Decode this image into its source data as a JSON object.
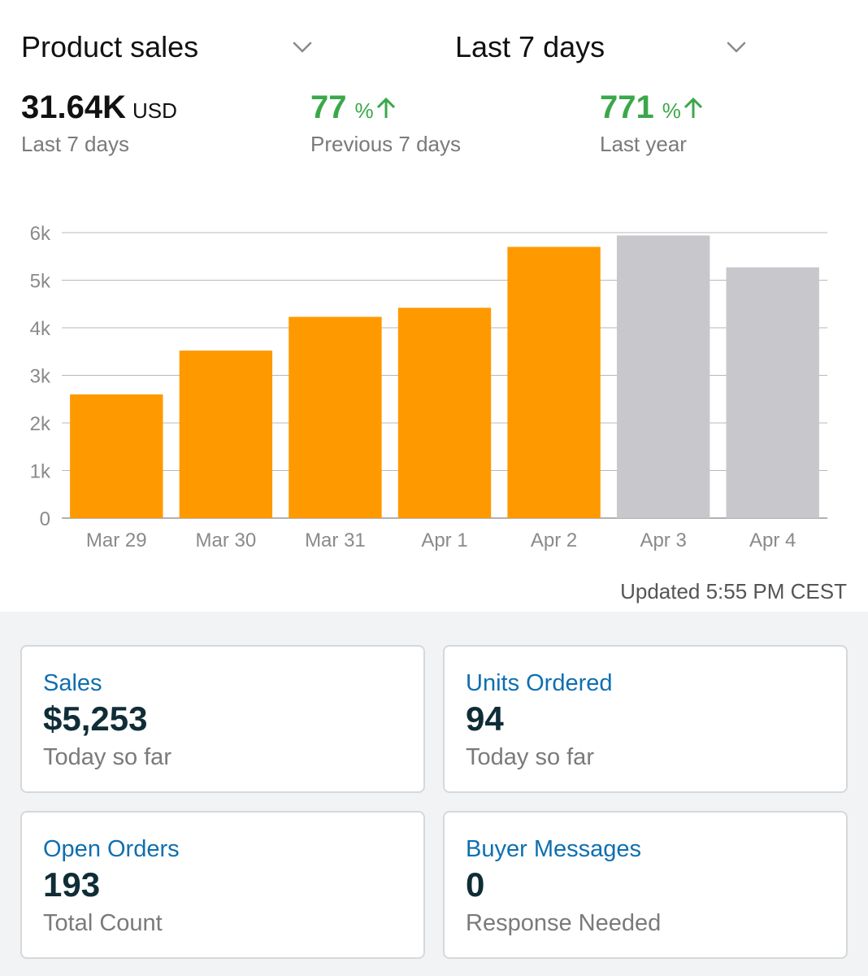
{
  "header": {
    "metric_dropdown": "Product sales",
    "range_dropdown": "Last 7 days"
  },
  "stats": {
    "total": {
      "value": "31.64K",
      "unit": "USD",
      "label": "Last 7 days"
    },
    "previous": {
      "value": "77",
      "unit": "%",
      "label": "Previous 7 days"
    },
    "last_year": {
      "value": "771",
      "unit": "%",
      "label": "Last year"
    }
  },
  "colors": {
    "current_bar": "#ff9900",
    "forecast_bar": "#c8c8cc",
    "positive": "#3aa84a",
    "link": "#0f6fb0"
  },
  "chart_data": {
    "type": "bar",
    "categories": [
      "Mar 29",
      "Mar 30",
      "Mar 31",
      "Apr 1",
      "Apr 2",
      "Apr 3",
      "Apr 4"
    ],
    "values": [
      2600,
      3520,
      4230,
      4420,
      5700,
      5940,
      5270
    ],
    "bar_colors": [
      "#ff9900",
      "#ff9900",
      "#ff9900",
      "#ff9900",
      "#ff9900",
      "#c8c8cc",
      "#c8c8cc"
    ],
    "ylim": [
      0,
      6000
    ],
    "yticks": [
      0,
      1000,
      2000,
      3000,
      4000,
      5000,
      6000
    ],
    "ytick_labels": [
      "0",
      "1k",
      "2k",
      "3k",
      "4k",
      "5k",
      "6k"
    ],
    "grid": true
  },
  "updated": "Updated 5:55 PM CEST",
  "cards": [
    {
      "title": "Sales",
      "value": "$5,253",
      "sub": "Today so far"
    },
    {
      "title": "Units Ordered",
      "value": "94",
      "sub": "Today so far"
    },
    {
      "title": "Open Orders",
      "value": "193",
      "sub": "Total Count"
    },
    {
      "title": "Buyer Messages",
      "value": "0",
      "sub": "Response Needed"
    }
  ]
}
